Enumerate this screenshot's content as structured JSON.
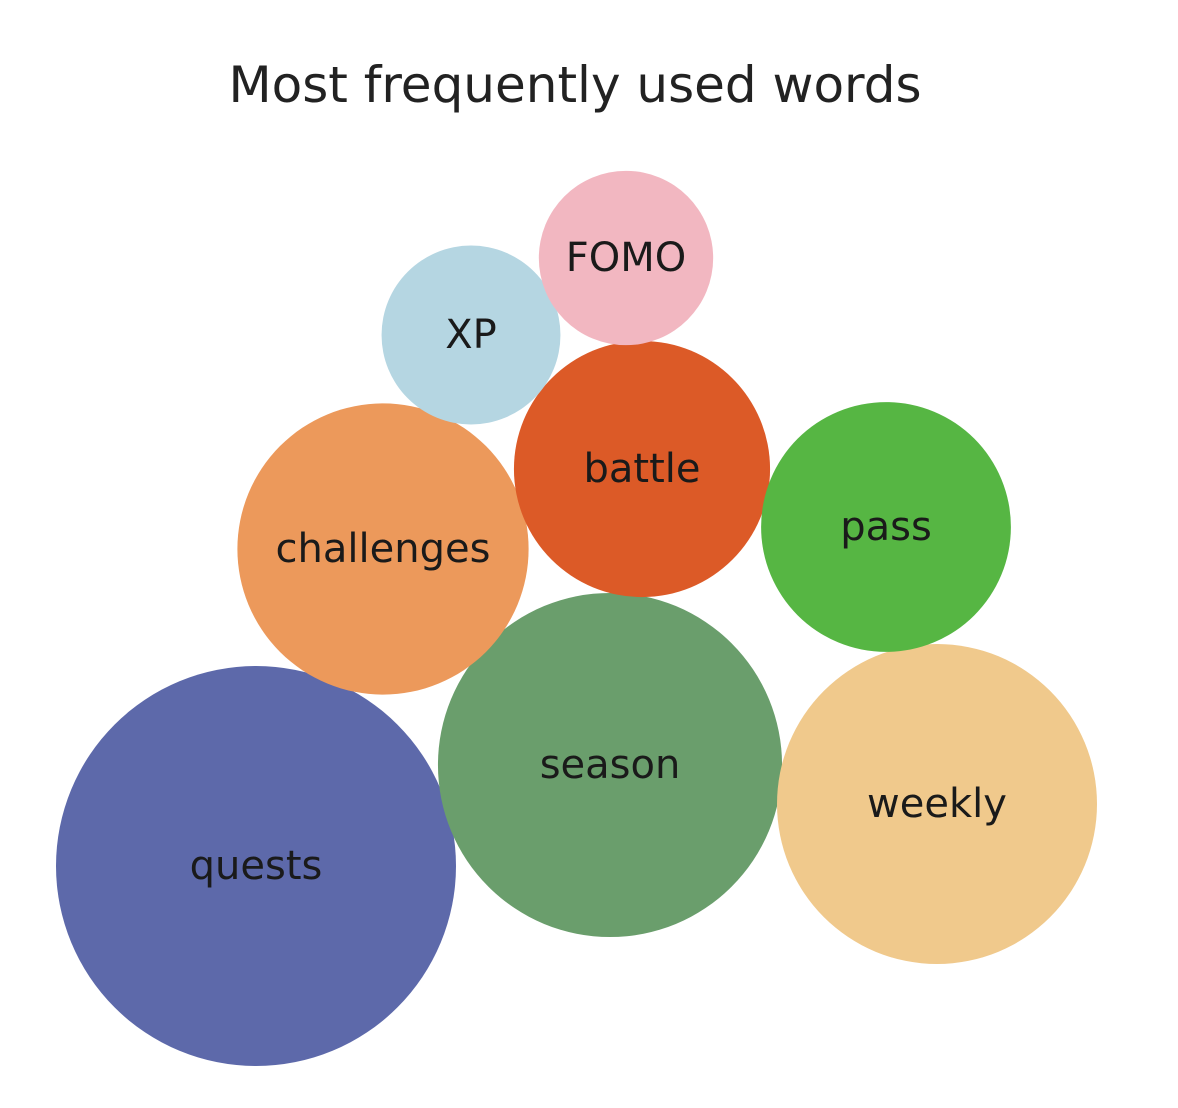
{
  "chart_data": {
    "type": "bubble",
    "title": "Most frequently used words",
    "words": [
      {
        "label": "quests",
        "value": 100,
        "color": "#5d69aa"
      },
      {
        "label": "season",
        "value": 74,
        "color": "#6a9e6c"
      },
      {
        "label": "weekly",
        "value": 64,
        "color": "#f0c98c"
      },
      {
        "label": "challenges",
        "value": 53,
        "color": "#ec995b"
      },
      {
        "label": "battle",
        "value": 41,
        "color": "#dc5a27"
      },
      {
        "label": "pass",
        "value": 39,
        "color": "#56b643"
      },
      {
        "label": "XP",
        "value": 20,
        "color": "#b5d6e2"
      },
      {
        "label": "FOMO",
        "value": 19,
        "color": "#f2b7c1"
      }
    ]
  }
}
